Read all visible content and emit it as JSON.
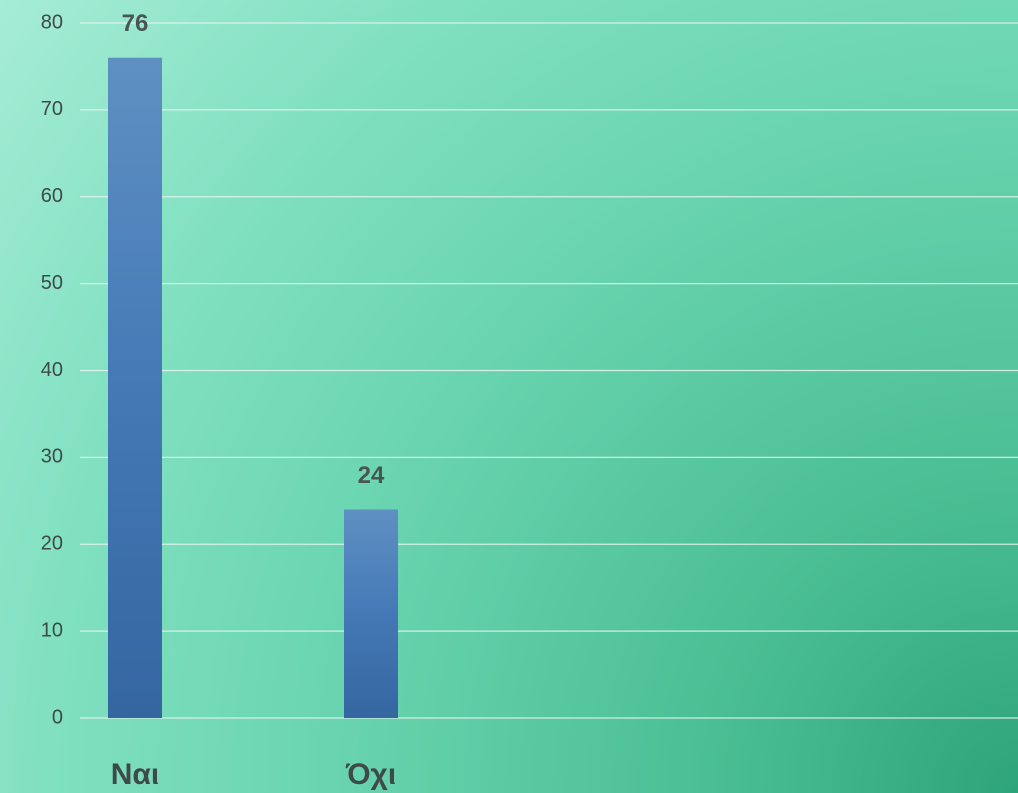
{
  "chart_data": {
    "type": "bar",
    "categories": [
      "Ναι",
      "Όχι"
    ],
    "values": [
      76,
      24
    ],
    "color": "#4a7fb9",
    "ylim": [
      0,
      80
    ],
    "yticks": [
      0,
      10,
      20,
      30,
      40,
      50,
      60,
      70,
      80
    ],
    "grid": true,
    "data_labels": true
  }
}
